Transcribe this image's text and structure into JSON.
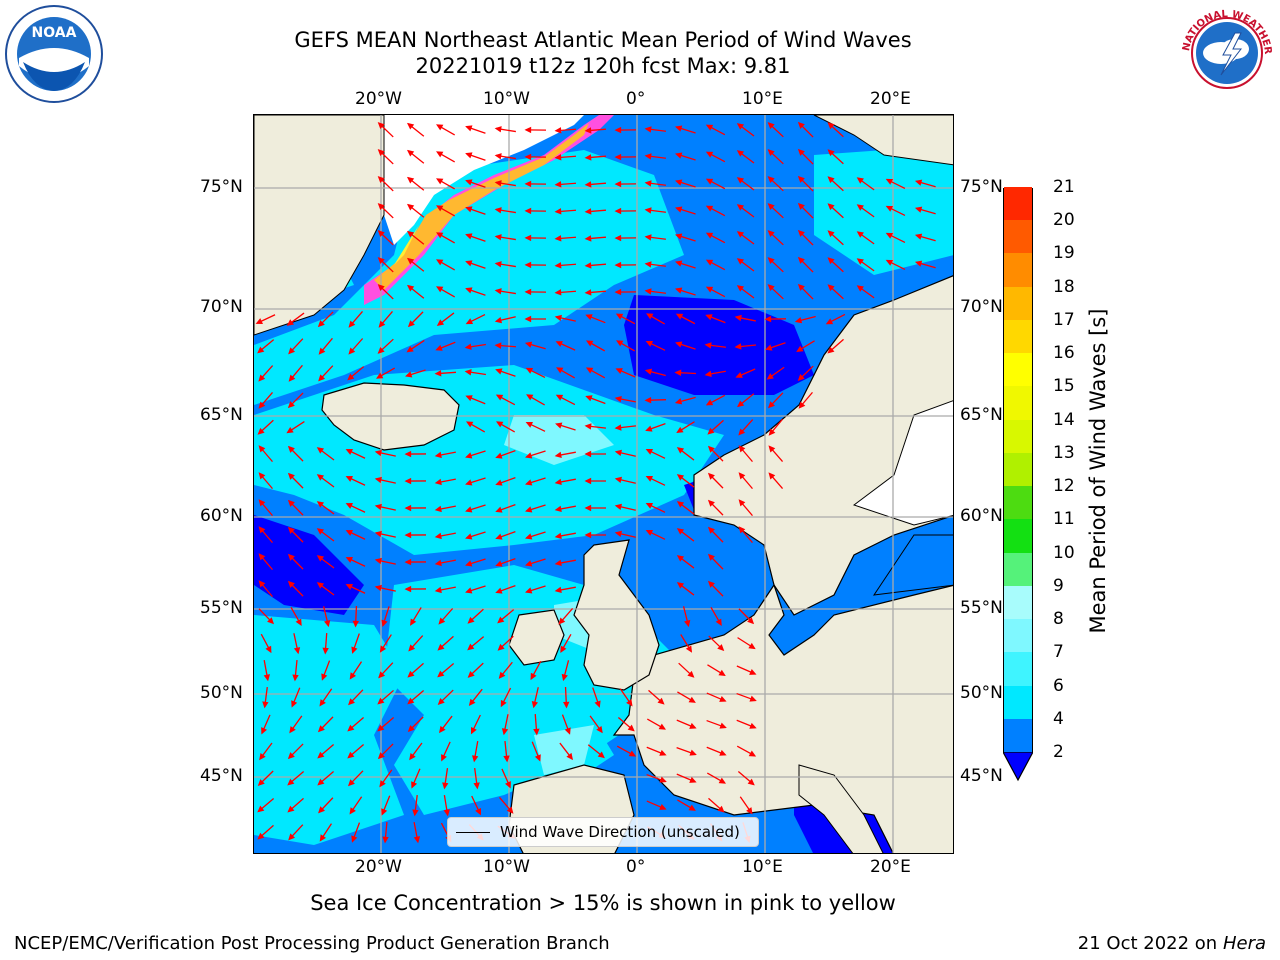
{
  "title": {
    "line1": "GEFS MEAN Northeast Atlantic Mean Period of Wind Waves",
    "line2": "20221019 t12z 120h fcst   Max: 9.81"
  },
  "logos": {
    "left": {
      "icon": "noaa-logo",
      "text": "NOAA"
    },
    "right": {
      "icon": "nws-logo",
      "text": "NATIONAL WEATHER SERVICE"
    }
  },
  "map": {
    "lon_ticks_top": [
      "20°W",
      "10°W",
      "0°",
      "10°E",
      "20°E"
    ],
    "lon_ticks_bottom": [
      "20°W",
      "10°W",
      "0°",
      "10°E",
      "20°E"
    ],
    "lat_ticks_left": [
      "75°N",
      "70°N",
      "65°N",
      "60°N",
      "55°N",
      "50°N",
      "45°N"
    ],
    "lat_ticks_right": [
      "75°N",
      "70°N",
      "65°N",
      "60°N",
      "55°N",
      "50°N",
      "45°N"
    ],
    "land_color": "#efeddc",
    "arrow_color": "#ff0000",
    "legend_label": "Wind Wave Direction (unscaled)"
  },
  "colorbar": {
    "label": "Mean Period of Wind Waves [s]",
    "ticks": [
      "2",
      "4",
      "6",
      "7",
      "8",
      "9",
      "10",
      "11",
      "12",
      "13",
      "14",
      "15",
      "16",
      "17",
      "18",
      "19",
      "20",
      "21"
    ],
    "colors": [
      "#0080ff",
      "#00e8ff",
      "#3ff4ff",
      "#7ff8ff",
      "#a8fcfc",
      "#55f27a",
      "#13e012",
      "#4ddc11",
      "#b0f000",
      "#d8f800",
      "#f0f800",
      "#ffff00",
      "#ffd800",
      "#ffb800",
      "#ff8c00",
      "#ff5a00",
      "#ff2800",
      "#ff0000"
    ],
    "under_color": "#0000ff"
  },
  "subtitle": "Sea Ice Concentration > 15% is shown in pink to yellow",
  "footer": {
    "left": "NCEP/EMC/Verification Post Processing Product Generation Branch",
    "right_prefix": "21 Oct 2022 on ",
    "right_host": "Hera"
  }
}
